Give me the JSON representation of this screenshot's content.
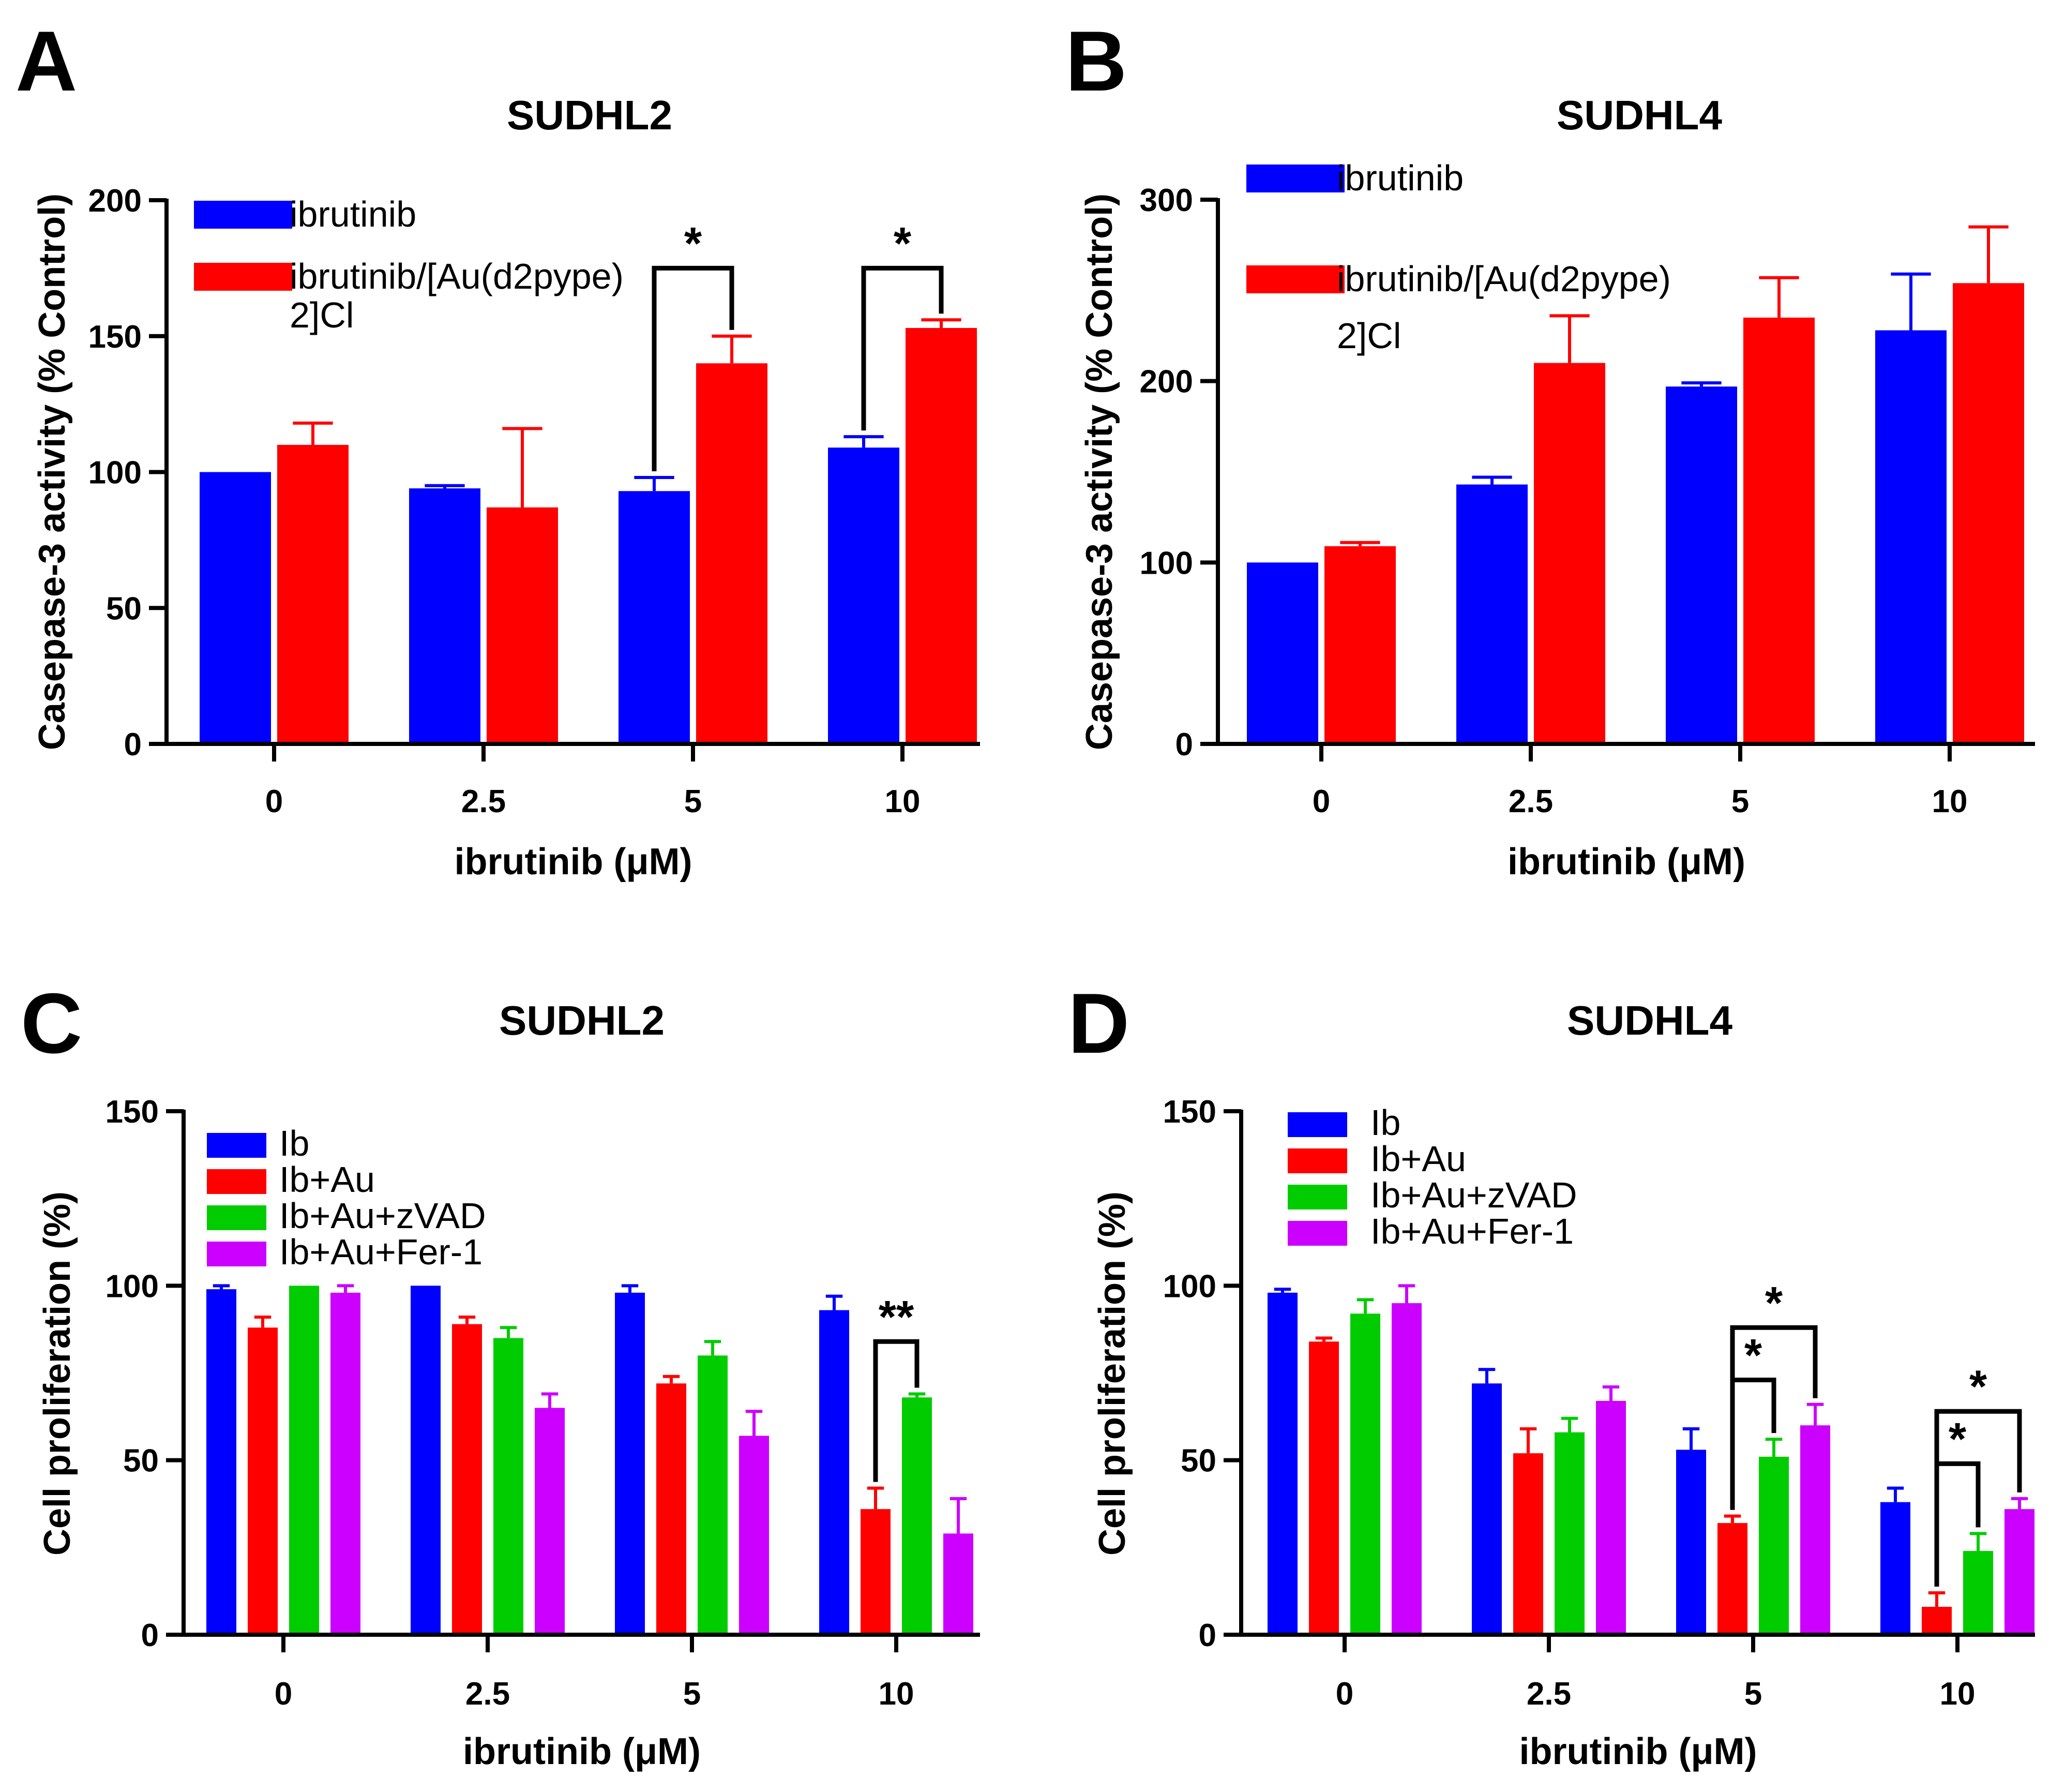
{
  "chart_data": [
    {
      "panel": "A",
      "type": "bar",
      "title": "SUDHL2",
      "xlabel": "ibrutinib (μM)",
      "ylabel": "Casepase-3 activity (% Control)",
      "ylim": [
        0,
        200
      ],
      "yticks": [
        0,
        50,
        100,
        150,
        200
      ],
      "grid": false,
      "legend_position": "top-left",
      "categories": [
        "0",
        "2.5",
        "5",
        "10"
      ],
      "series": [
        {
          "name": "ibrutinib",
          "color": "#0000ff",
          "values": [
            100,
            94,
            93,
            109
          ],
          "errors": [
            0,
            1,
            5,
            4
          ]
        },
        {
          "name": "ibrutinib/[Au(d2pype)\n2]Cl",
          "color": "#ff0000",
          "values": [
            110,
            87,
            140,
            153
          ],
          "errors": [
            8,
            29,
            10,
            3
          ]
        }
      ],
      "annotations": [
        {
          "label": "*",
          "category": 2,
          "from_series": 0,
          "to_series": 1,
          "y": 175
        },
        {
          "label": "*",
          "category": 3,
          "from_series": 0,
          "to_series": 1,
          "y": 175
        }
      ]
    },
    {
      "panel": "B",
      "type": "bar",
      "title": "SUDHL4",
      "xlabel": "ibrutinib (μM)",
      "ylabel": "Casepase-3 activity (% Control)",
      "ylim": [
        0,
        300
      ],
      "yticks": [
        0,
        100,
        200,
        300
      ],
      "grid": false,
      "legend_position": "top-left",
      "categories": [
        "0",
        "2.5",
        "5",
        "10"
      ],
      "series": [
        {
          "name": "ibrutinib",
          "color": "#0000ff",
          "values": [
            100,
            143,
            197,
            228
          ],
          "errors": [
            0,
            4,
            2,
            31
          ]
        },
        {
          "name": "ibrutinib/[Au(d2pype)\n2]Cl",
          "color": "#ff0000",
          "values": [
            109,
            210,
            235,
            254
          ],
          "errors": [
            2,
            26,
            22,
            31
          ]
        }
      ],
      "annotations": []
    },
    {
      "panel": "C",
      "type": "bar",
      "title": "SUDHL2",
      "xlabel": "ibrutinib (μM)",
      "ylabel": "Cell proliferation (%)",
      "ylim": [
        0,
        150
      ],
      "yticks": [
        0,
        50,
        100,
        150
      ],
      "grid": false,
      "legend_position": "top-left",
      "categories": [
        "0",
        "2.5",
        "5",
        "10"
      ],
      "series": [
        {
          "name": "Ib",
          "color": "#0000ff",
          "values": [
            99,
            100,
            98,
            93
          ],
          "errors": [
            1,
            0,
            2,
            4
          ]
        },
        {
          "name": "Ib+Au",
          "color": "#ff0000",
          "values": [
            88,
            89,
            72,
            36
          ],
          "errors": [
            3,
            2,
            2,
            6
          ]
        },
        {
          "name": "Ib+Au+zVAD",
          "color": "#00cc00",
          "values": [
            100,
            85,
            80,
            68
          ],
          "errors": [
            0,
            3,
            4,
            1
          ]
        },
        {
          "name": "Ib+Au+Fer-1",
          "color": "#cc00ff",
          "values": [
            98,
            65,
            57,
            29
          ],
          "errors": [
            2,
            4,
            7,
            10
          ]
        }
      ],
      "annotations": [
        {
          "label": "**",
          "category": 3,
          "from_series": 1,
          "to_series": 2,
          "y": 84
        }
      ]
    },
    {
      "panel": "D",
      "type": "bar",
      "title": "SUDHL4",
      "xlabel": "ibrutinib (μM)",
      "ylabel": "Cell proliferation (%)",
      "ylim": [
        0,
        150
      ],
      "yticks": [
        0,
        50,
        100,
        150
      ],
      "grid": false,
      "legend_position": "top-left",
      "categories": [
        "0",
        "2.5",
        "5",
        "10"
      ],
      "series": [
        {
          "name": "Ib",
          "color": "#0000ff",
          "values": [
            98,
            72,
            53,
            38
          ],
          "errors": [
            1,
            4,
            6,
            4
          ]
        },
        {
          "name": "Ib+Au",
          "color": "#ff0000",
          "values": [
            84,
            52,
            32,
            8
          ],
          "errors": [
            1,
            7,
            2,
            4
          ]
        },
        {
          "name": "Ib+Au+zVAD",
          "color": "#00cc00",
          "values": [
            92,
            58,
            51,
            24
          ],
          "errors": [
            4,
            4,
            5,
            5
          ]
        },
        {
          "name": "Ib+Au+Fer-1",
          "color": "#cc00ff",
          "values": [
            95,
            67,
            60,
            36
          ],
          "errors": [
            5,
            4,
            6,
            3
          ]
        }
      ],
      "annotations": [
        {
          "label": "*",
          "category": 2,
          "from_series": 1,
          "to_series": 2,
          "y": 73
        },
        {
          "label": "*",
          "category": 2,
          "from_series": 1,
          "to_series": 3,
          "y": 88
        },
        {
          "label": "*",
          "category": 3,
          "from_series": 1,
          "to_series": 2,
          "y": 49
        },
        {
          "label": "*",
          "category": 3,
          "from_series": 1,
          "to_series": 3,
          "y": 64
        }
      ]
    }
  ]
}
